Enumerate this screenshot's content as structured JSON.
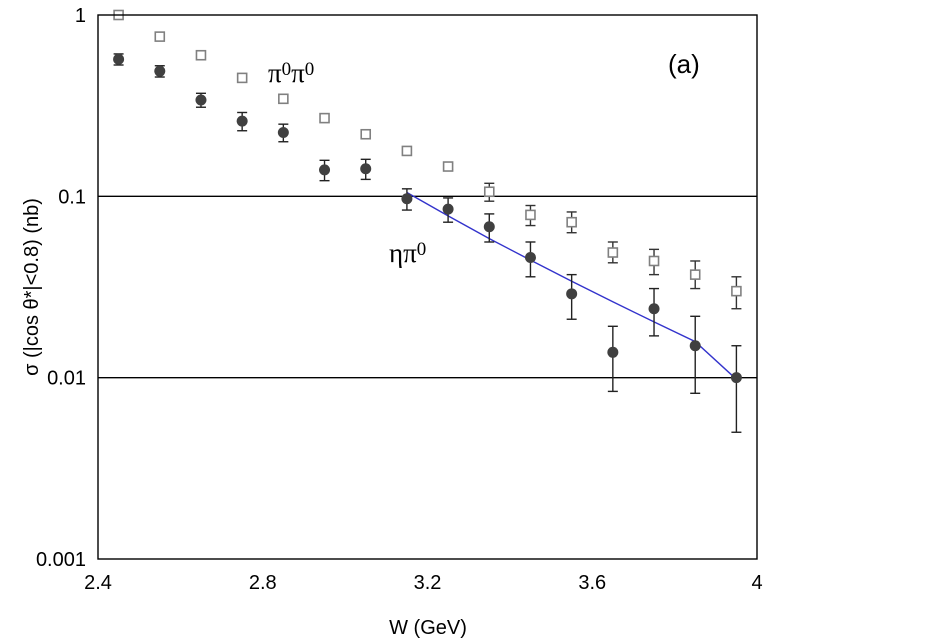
{
  "chart_data": {
    "type": "scatter",
    "title": "",
    "panel_label": "(a)",
    "xlabel": "W (GeV)",
    "ylabel": "σ (|cos θ*|<0.8) (nb)",
    "xlim": [
      2.4,
      4.0
    ],
    "ylim": [
      0.001,
      1
    ],
    "yscale": "log",
    "x_ticks": [
      "2.4",
      "2.8",
      "3.2",
      "3.6",
      "4"
    ],
    "x_tick_values": [
      2.4,
      2.8,
      3.2,
      3.6,
      4.0
    ],
    "y_ticks": [
      "0.001",
      "0.01",
      "0.1",
      "1"
    ],
    "y_tick_values": [
      0.001,
      0.01,
      0.1,
      1
    ],
    "gridlines_y": [
      0.01,
      0.1
    ],
    "series": [
      {
        "name": "π⁰π⁰",
        "label_text": "π0π0",
        "marker": "open-square",
        "color": "#808080",
        "x": [
          2.45,
          2.55,
          2.65,
          2.75,
          2.85,
          2.95,
          3.05,
          3.15,
          3.25,
          3.35,
          3.45,
          3.55,
          3.65,
          3.75,
          3.85,
          3.95
        ],
        "y": [
          1.0,
          0.76,
          0.6,
          0.45,
          0.345,
          0.27,
          0.22,
          0.178,
          0.146,
          0.106,
          0.079,
          0.072,
          0.049,
          0.044,
          0.037,
          0.03
        ],
        "yerr_low": [
          0,
          0,
          0,
          0,
          0,
          0,
          0,
          0,
          0.006,
          0.012,
          0.01,
          0.009,
          0.006,
          0.007,
          0.006,
          0.006
        ],
        "yerr_high": [
          0,
          0,
          0,
          0,
          0,
          0,
          0,
          0,
          0.006,
          0.012,
          0.01,
          0.01,
          0.007,
          0.007,
          0.007,
          0.006
        ]
      },
      {
        "name": "ηπ⁰",
        "label_text": "ηπ0",
        "marker": "filled-circle",
        "color": "#404040",
        "x": [
          2.45,
          2.55,
          2.65,
          2.75,
          2.85,
          2.95,
          3.05,
          3.15,
          3.25,
          3.35,
          3.45,
          3.55,
          3.65,
          3.75,
          3.85,
          3.95
        ],
        "y": [
          0.57,
          0.49,
          0.34,
          0.26,
          0.225,
          0.14,
          0.142,
          0.097,
          0.085,
          0.068,
          0.046,
          0.029,
          0.0138,
          0.024,
          0.015,
          0.01
        ],
        "yerr_low": [
          0.04,
          0.035,
          0.03,
          0.03,
          0.025,
          0.018,
          0.018,
          0.013,
          0.013,
          0.012,
          0.01,
          0.008,
          0.0054,
          0.007,
          0.0068,
          0.005
        ],
        "yerr_high": [
          0.04,
          0.035,
          0.03,
          0.03,
          0.025,
          0.018,
          0.018,
          0.013,
          0.013,
          0.012,
          0.01,
          0.008,
          0.0054,
          0.007,
          0.0068,
          0.005
        ]
      }
    ],
    "fit_curve": {
      "color": "#3333cc",
      "x": [
        3.15,
        3.25,
        3.35,
        3.45,
        3.55,
        3.65,
        3.75,
        3.85,
        3.95
      ],
      "y": [
        0.105,
        0.078,
        0.0585,
        0.0445,
        0.034,
        0.0262,
        0.0203,
        0.0158,
        0.0098
      ]
    }
  }
}
